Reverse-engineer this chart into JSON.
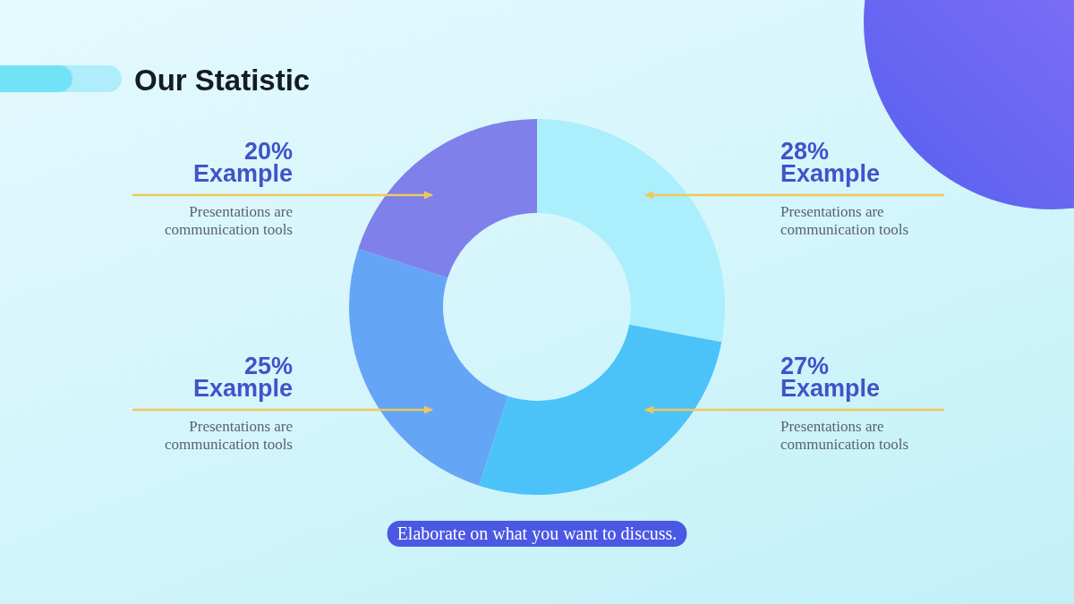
{
  "chart_data": {
    "type": "donut",
    "title": "Our Statistic",
    "categories": [
      "Example",
      "Example",
      "Example",
      "Example"
    ],
    "values": [
      28,
      27,
      25,
      20
    ],
    "colors": [
      "#aaeffb",
      "#4bc3f9",
      "#64a5f6",
      "#7f80e9"
    ],
    "value_labels": [
      "28%",
      "27%",
      "25%",
      "20%"
    ],
    "annotations": [
      "Presentations are communication tools",
      "Presentations are communication tools",
      "Presentations are communication tools",
      "Presentations are communication tools",
      "Elaborate on what you want to discuss."
    ]
  }
}
